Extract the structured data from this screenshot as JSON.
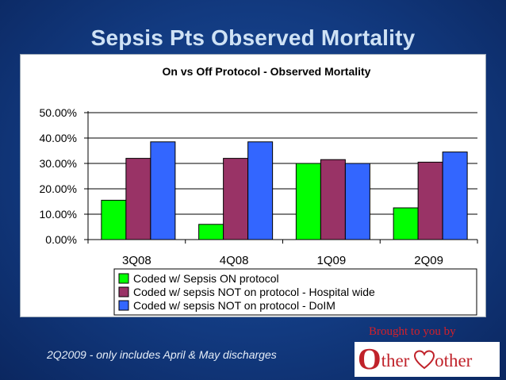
{
  "slide": {
    "title": "Sepsis Pts Observed Mortality",
    "footnote": "2Q2009 - only includes April & May discharges",
    "brought_by": "Brought to you by",
    "logo_text": "Other Mother"
  },
  "colors": {
    "background": "#123a80",
    "title": "#cfe2f5",
    "brand_red": "#c0222a"
  },
  "chart_data": {
    "type": "bar",
    "title": "On vs Off Protocol - Observed Mortality",
    "categories": [
      "3Q08",
      "4Q08",
      "1Q09",
      "2Q09"
    ],
    "series": [
      {
        "name": "Coded w/ Sepsis ON protocol",
        "values": [
          15.5,
          6.0,
          30.0,
          12.5
        ],
        "color": "#00ff00"
      },
      {
        "name": "Coded w/ sepsis NOT on protocol - Hospital wide",
        "values": [
          32.0,
          32.0,
          31.5,
          30.5
        ],
        "color": "#993366"
      },
      {
        "name": "Coded w/ sepsis NOT on protocol - DoIM",
        "values": [
          38.5,
          38.5,
          30.0,
          34.5
        ],
        "color": "#3366ff"
      }
    ],
    "ylim": [
      0,
      50
    ],
    "yticks": [
      "0.00%",
      "10.00%",
      "20.00%",
      "30.00%",
      "40.00%",
      "50.00%"
    ],
    "xlabel": "",
    "ylabel": "",
    "grid": true,
    "legend_position": "bottom"
  }
}
